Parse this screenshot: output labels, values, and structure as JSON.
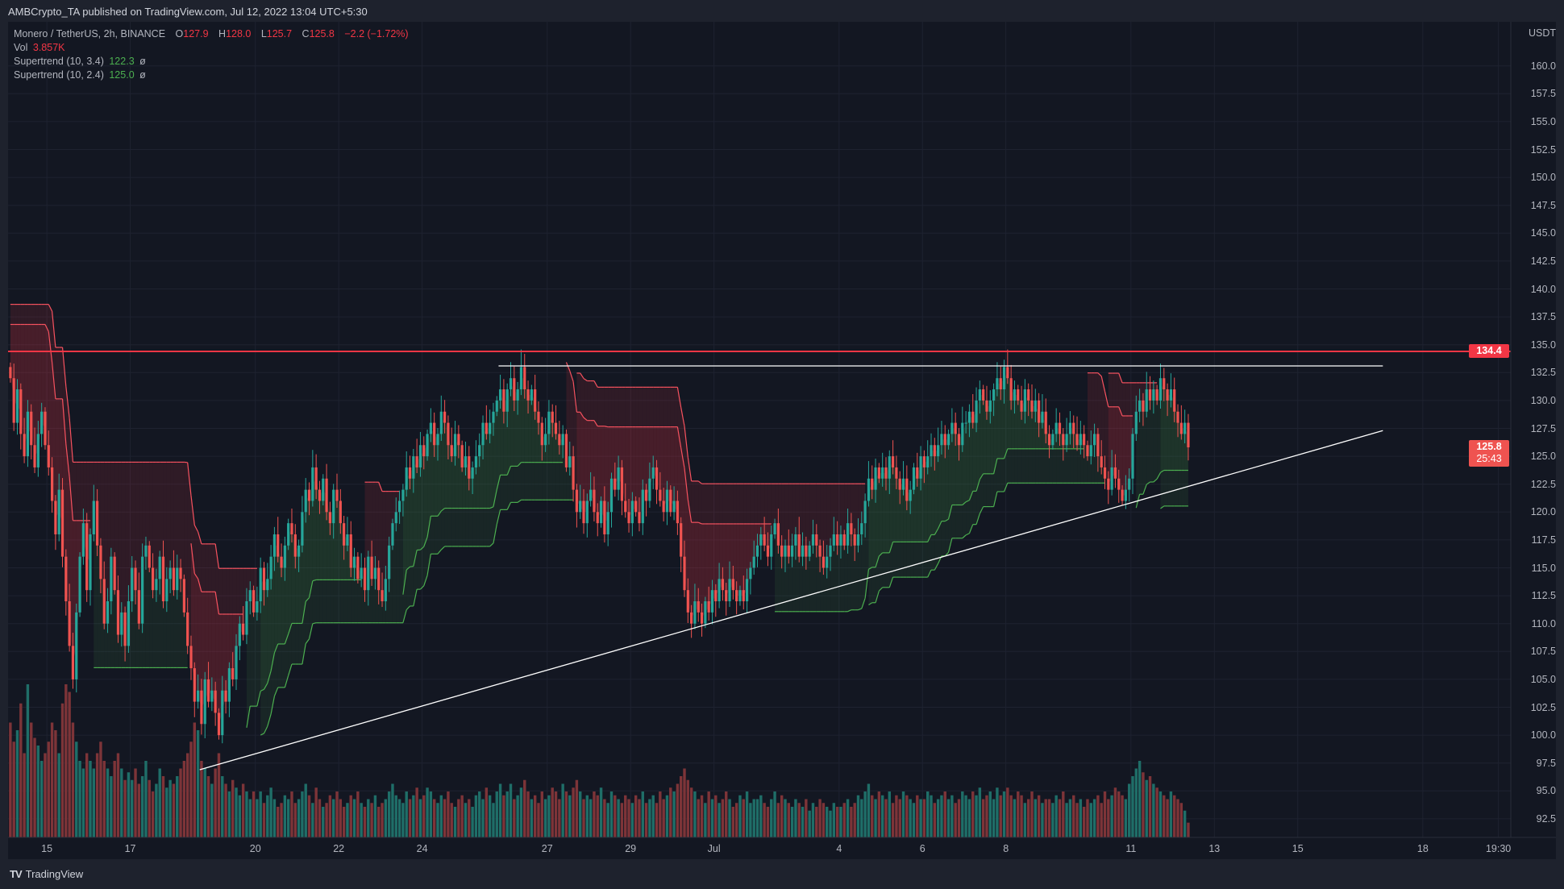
{
  "header": {
    "published": "AMBCrypto_TA published on TradingView.com, Jul 12, 2022 13:04 UTC+5:30"
  },
  "legend": {
    "symbol": "Monero / TetherUS, 2h, BINANCE",
    "o_label": "O",
    "o": "127.9",
    "h_label": "H",
    "h": "128.0",
    "l_label": "L",
    "l": "125.7",
    "c_label": "C",
    "c": "125.8",
    "change": "−2.2 (−1.72%)",
    "vol_label": "Vol",
    "vol": "3.857K",
    "st1_label": "Supertrend (10, 3.4)",
    "st1": "122.3",
    "st2_label": "Supertrend (10, 2.4)",
    "st2": "125.0",
    "eye": "ø"
  },
  "price_axis": {
    "currency": "USDT",
    "ticks": [
      "160.0",
      "157.5",
      "155.0",
      "152.5",
      "150.0",
      "147.5",
      "145.0",
      "142.5",
      "140.0",
      "137.5",
      "135.0",
      "132.5",
      "130.0",
      "127.5",
      "125.0",
      "122.5",
      "120.0",
      "117.5",
      "115.0",
      "112.5",
      "110.0",
      "107.5",
      "105.0",
      "102.5",
      "100.0",
      "97.5",
      "95.0",
      "92.5"
    ],
    "level_tag": "134.4",
    "last_price": "125.8",
    "countdown": "25:43"
  },
  "time_axis": {
    "ticks": [
      {
        "label": "15",
        "date": "2022-06-15T00:00"
      },
      {
        "label": "17",
        "date": "2022-06-17T00:00"
      },
      {
        "label": "20",
        "date": "2022-06-20T00:00"
      },
      {
        "label": "22",
        "date": "2022-06-22T00:00"
      },
      {
        "label": "24",
        "date": "2022-06-24T00:00"
      },
      {
        "label": "27",
        "date": "2022-06-27T00:00"
      },
      {
        "label": "29",
        "date": "2022-06-29T00:00"
      },
      {
        "label": "Jul",
        "date": "2022-07-01T00:00"
      },
      {
        "label": "4",
        "date": "2022-07-04T00:00"
      },
      {
        "label": "6",
        "date": "2022-07-06T00:00"
      },
      {
        "label": "8",
        "date": "2022-07-08T00:00"
      },
      {
        "label": "11",
        "date": "2022-07-11T00:00"
      },
      {
        "label": "13",
        "date": "2022-07-13T00:00"
      },
      {
        "label": "15",
        "date": "2022-07-15T00:00"
      },
      {
        "label": "18",
        "date": "2022-07-18T00:00"
      },
      {
        "label": "19:30",
        "date": "2022-07-19T19:30"
      }
    ]
  },
  "footer": {
    "brand": "TradingView",
    "logo": "TV"
  },
  "colors": {
    "up": "#26a69a",
    "down": "#ef5350",
    "st_up": "#4caf50",
    "st_down": "#f7525f",
    "level": "#f23645",
    "drawing": "#ffffff",
    "bg": "#131722"
  },
  "chart_data": {
    "type": "candlestick",
    "symbol": "XMR/USDT",
    "interval": "2h",
    "start": "2022-06-14T02:00",
    "ylim": [
      91,
      163
    ],
    "close": [
      132,
      128,
      131,
      127,
      125,
      129,
      126,
      124,
      127,
      129,
      126,
      124,
      121,
      118,
      122,
      116,
      112,
      108,
      105,
      111,
      116,
      119,
      113,
      118,
      121,
      117,
      114,
      110,
      112,
      116,
      113,
      109,
      111,
      108,
      112,
      115,
      113,
      110,
      116,
      117,
      115,
      113,
      114,
      116,
      112,
      114,
      115,
      113,
      115,
      114,
      111,
      108,
      106,
      103,
      104,
      101,
      105,
      103,
      104,
      102,
      100,
      104,
      103,
      106,
      105,
      108,
      110,
      109,
      112,
      113,
      111,
      112,
      115,
      113,
      114,
      116,
      118,
      116,
      115,
      117,
      119,
      118,
      116,
      117,
      120,
      122,
      121,
      124,
      122,
      121,
      123,
      120,
      119,
      122,
      121,
      119,
      117,
      118,
      115,
      116,
      114,
      115,
      113,
      116,
      114,
      115,
      113,
      112,
      114,
      117,
      119,
      120,
      121,
      122,
      124,
      123,
      125,
      124,
      126,
      125,
      127,
      128,
      126,
      127,
      129,
      128,
      126,
      125,
      127,
      126,
      124,
      125,
      123,
      124,
      125,
      126,
      128,
      127,
      128,
      129,
      130,
      131,
      129,
      131,
      132,
      130,
      131,
      133,
      131,
      130,
      131,
      129,
      128,
      126,
      127,
      129,
      128,
      127,
      126,
      127,
      124,
      125,
      122,
      120,
      121,
      119,
      121,
      122,
      120,
      119,
      121,
      118,
      120,
      123,
      122,
      124,
      121,
      120,
      119,
      121,
      120,
      119,
      122,
      121,
      123,
      124,
      122,
      121,
      120,
      122,
      120,
      121,
      119,
      116,
      113,
      111,
      110,
      112,
      111,
      110,
      112,
      111,
      113,
      112,
      114,
      113,
      112,
      114,
      113,
      112,
      113,
      112,
      114,
      115,
      116,
      117,
      118,
      117,
      116,
      118,
      119,
      117,
      116,
      117,
      116,
      117,
      118,
      116,
      117,
      116,
      117,
      118,
      117,
      116,
      115,
      116,
      117,
      118,
      117,
      118,
      117,
      119,
      118,
      117,
      118,
      119,
      121,
      123,
      122,
      124,
      123,
      124,
      123,
      125,
      124,
      123,
      122,
      123,
      121,
      122,
      124,
      123,
      125,
      124,
      125,
      126,
      125,
      126,
      127,
      126,
      127,
      128,
      127,
      126,
      128,
      128,
      129,
      128,
      130,
      131,
      130,
      129,
      130,
      131,
      132,
      131,
      133,
      132,
      130,
      131,
      130,
      129,
      131,
      130,
      129,
      130,
      128,
      129,
      127,
      126,
      127,
      128,
      127,
      126,
      127,
      128,
      127,
      126,
      127,
      126,
      125,
      126,
      127,
      125,
      124,
      123,
      122,
      124,
      123,
      122,
      121,
      122,
      123,
      127,
      129,
      130,
      129,
      131,
      130,
      131,
      130,
      132,
      131,
      130,
      131,
      129,
      128,
      127,
      128,
      125.8
    ],
    "volume_k": [
      30,
      25,
      28,
      35,
      22,
      40,
      30,
      26,
      24,
      20,
      22,
      25,
      30,
      28,
      22,
      35,
      40,
      38,
      30,
      25,
      20,
      18,
      22,
      20,
      18,
      22,
      25,
      20,
      18,
      16,
      20,
      22,
      18,
      15,
      17,
      15,
      18,
      14,
      16,
      20,
      15,
      12,
      14,
      18,
      16,
      13,
      15,
      14,
      16,
      18,
      20,
      22,
      25,
      30,
      28,
      20,
      18,
      16,
      14,
      18,
      22,
      16,
      14,
      12,
      15,
      13,
      11,
      14,
      12,
      10,
      12,
      10,
      12,
      9,
      11,
      13,
      10,
      8,
      9,
      11,
      10,
      12,
      9,
      10,
      12,
      14,
      11,
      9,
      13,
      10,
      8,
      9,
      11,
      10,
      12,
      10,
      8,
      9,
      11,
      10,
      12,
      9,
      8,
      10,
      9,
      11,
      8,
      9,
      10,
      12,
      14,
      11,
      10,
      9,
      12,
      10,
      11,
      13,
      10,
      11,
      13,
      12,
      10,
      9,
      11,
      10,
      12,
      9,
      8,
      10,
      11,
      9,
      10,
      8,
      11,
      12,
      10,
      13,
      11,
      9,
      12,
      14,
      11,
      12,
      14,
      10,
      11,
      13,
      15,
      12,
      10,
      11,
      9,
      12,
      10,
      11,
      13,
      12,
      10,
      14,
      12,
      11,
      13,
      15,
      12,
      10,
      11,
      10,
      12,
      11,
      13,
      10,
      9,
      12,
      11,
      10,
      9,
      11,
      10,
      9,
      11,
      10,
      12,
      9,
      10,
      11,
      9,
      12,
      10,
      11,
      13,
      12,
      14,
      16,
      18,
      15,
      13,
      12,
      10,
      11,
      9,
      12,
      10,
      11,
      9,
      10,
      12,
      10,
      8,
      9,
      11,
      10,
      12,
      9,
      10,
      10,
      11,
      9,
      8,
      10,
      12,
      9,
      11,
      10,
      9,
      8,
      10,
      9,
      8,
      10,
      7,
      9,
      8,
      10,
      9,
      8,
      7,
      9,
      8,
      8,
      9,
      10,
      8,
      9,
      11,
      10,
      12,
      14,
      11,
      10,
      12,
      11,
      10,
      12,
      9,
      11,
      10,
      12,
      11,
      10,
      9,
      11,
      10,
      10,
      12,
      11,
      9,
      10,
      11,
      12,
      10,
      11,
      9,
      10,
      12,
      11,
      10,
      12,
      11,
      13,
      10,
      11,
      12,
      10,
      13,
      11,
      12,
      13,
      11,
      10,
      12,
      11,
      9,
      10,
      12,
      10,
      11,
      9,
      10,
      10,
      9,
      11,
      10,
      12,
      9,
      10,
      11,
      9,
      10,
      8,
      10,
      9,
      10,
      11,
      9,
      12,
      10,
      11,
      13,
      12,
      11,
      10,
      14,
      16,
      18,
      20,
      17,
      15,
      16,
      14,
      13,
      12,
      11,
      10,
      12,
      11,
      10,
      9,
      7,
      3.857
    ],
    "indicators": [
      {
        "name": "Supertrend (10, 3.4)",
        "atr_period": 10,
        "factor": 3.4
      },
      {
        "name": "Supertrend (10, 2.4)",
        "atr_period": 10,
        "factor": 2.4
      }
    ],
    "drawings": [
      {
        "type": "horizontal_line",
        "price": 134.4,
        "color": "#f23645"
      },
      {
        "type": "trend_line",
        "from": {
          "date": "2022-06-25T20:00",
          "price": 133.1
        },
        "to": {
          "date": "2022-07-17T01:00",
          "price": 133.1
        },
        "color": "#ffffff"
      },
      {
        "type": "trend_line",
        "from": {
          "date": "2022-06-18T16:00",
          "price": 96.9
        },
        "to": {
          "date": "2022-07-17T01:00",
          "price": 127.3
        },
        "color": "#ffffff"
      }
    ]
  }
}
